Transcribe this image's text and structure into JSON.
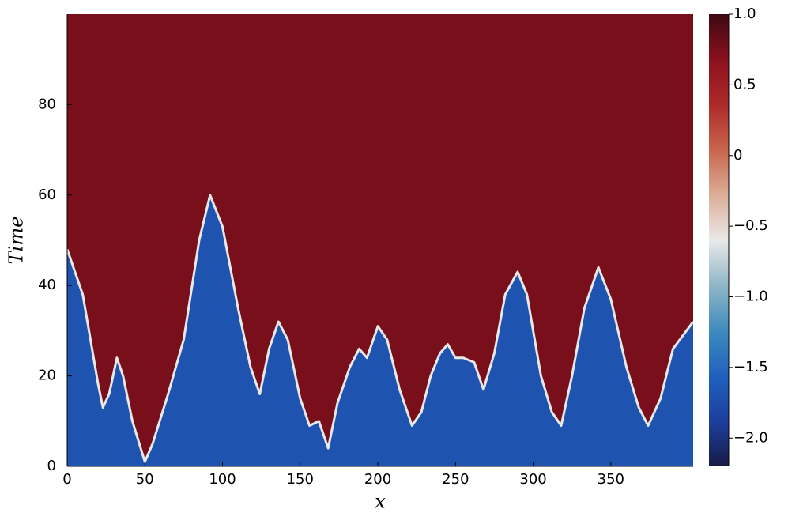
{
  "chart_data": {
    "type": "heatmap",
    "xlabel": "x",
    "ylabel": "Time",
    "x": [
      0,
      10,
      20,
      23,
      27,
      32,
      36,
      42,
      50,
      55,
      65,
      75,
      85,
      92,
      100,
      110,
      118,
      124,
      130,
      136,
      142,
      150,
      156,
      162,
      168,
      174,
      182,
      188,
      193,
      200,
      206,
      214,
      222,
      228,
      234,
      240,
      245,
      250,
      255,
      262,
      268,
      275,
      282,
      290,
      296,
      305,
      312,
      318,
      325,
      333,
      342,
      350,
      360,
      368,
      374,
      382,
      390,
      403
    ],
    "values": [
      48,
      38,
      18,
      13,
      16,
      24,
      20,
      10,
      1,
      5,
      16,
      28,
      50,
      60,
      53,
      35,
      22,
      16,
      26,
      32,
      28,
      15,
      9,
      10,
      4,
      14,
      22,
      26,
      24,
      31,
      28,
      17,
      9,
      12,
      20,
      25,
      27,
      24,
      24,
      23,
      17,
      25,
      38,
      43,
      38,
      20,
      12,
      9,
      20,
      35,
      44,
      37,
      22,
      13,
      9,
      15,
      26,
      32
    ],
    "above_value": 0.75,
    "below_value": -1.7,
    "xlim": [
      0,
      403
    ],
    "xticks": [
      0,
      50,
      100,
      150,
      200,
      250,
      300,
      350
    ],
    "ylim": [
      0,
      100
    ],
    "yticks": [
      0,
      20,
      40,
      60,
      80
    ],
    "zlim": [
      -2.2,
      1.0
    ],
    "zticks": [
      {
        "value": -2.0,
        "label": "−2.0"
      },
      {
        "value": -1.5,
        "label": "−1.5"
      },
      {
        "value": -1.0,
        "label": "−1.0"
      },
      {
        "value": -0.5,
        "label": "−0.5"
      },
      0,
      0.5,
      {
        "value": 1.0,
        "label": "1.0"
      }
    ],
    "colormap": [
      "#171a45",
      "#1d3f9e",
      "#1f62be",
      "#3f8bbd",
      "#8fb6c6",
      "#e9e9e9",
      "#dcae98",
      "#c8654c",
      "#ad2a2a",
      "#8a111d",
      "#3c0912"
    ]
  }
}
